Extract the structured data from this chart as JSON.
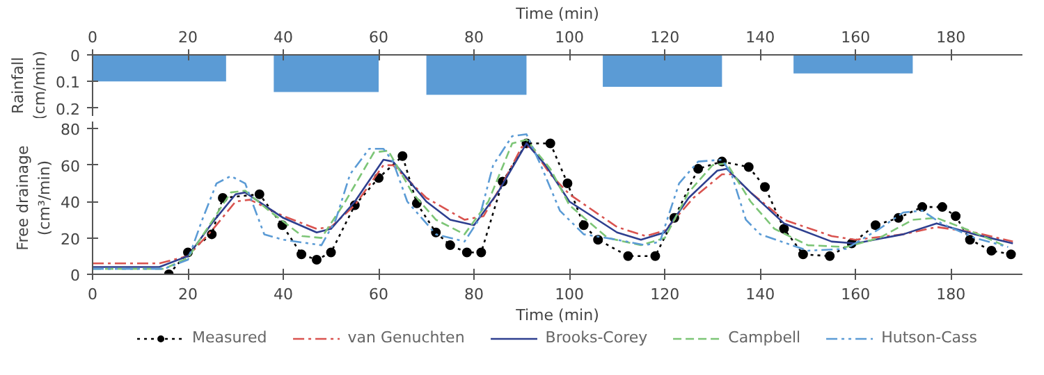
{
  "chart_data": [
    {
      "type": "area",
      "xlabel": "Time (min)",
      "ylabel": "Rainfall\n(cm/min)",
      "xlim": [
        0,
        195
      ],
      "xticks": [
        0,
        20,
        40,
        60,
        80,
        100,
        120,
        140,
        160,
        180
      ],
      "ylim": [
        0.23,
        0
      ],
      "yticks": [
        0,
        0.1,
        0.2
      ],
      "grid": false,
      "series": [
        {
          "color": "#5b9bd5",
          "x": [
            0,
            0,
            28,
            28,
            38,
            38,
            60,
            60,
            70,
            70,
            91,
            91,
            107,
            107,
            132,
            132,
            147,
            147,
            172,
            172
          ],
          "values": [
            0,
            0.1,
            0.1,
            0,
            0,
            0.14,
            0.14,
            0,
            0,
            0.15,
            0.15,
            0,
            0,
            0.12,
            0.12,
            0,
            0,
            0.07,
            0.07,
            0
          ]
        }
      ]
    },
    {
      "type": "line",
      "xlabel": "Time (min)",
      "ylabel": "Free drainage\n(cm³/min)",
      "xlim": [
        0,
        195
      ],
      "xticks": [
        0,
        20,
        40,
        60,
        80,
        100,
        120,
        140,
        160,
        180
      ],
      "ylim": [
        0,
        84
      ],
      "yticks": [
        0,
        20,
        40,
        60,
        80
      ],
      "grid": false,
      "legend": "bottom",
      "series": [
        {
          "name": "Measured",
          "color": "#000000",
          "marker": "circle",
          "line_style": "dotted",
          "x": [
            16,
            20,
            25,
            27.3,
            35,
            39.8,
            43.8,
            47,
            50,
            55,
            60,
            65,
            68,
            72,
            75,
            78.5,
            81.5,
            86,
            91,
            96,
            99.6,
            103,
            106,
            112.3,
            118,
            122,
            127,
            132,
            137.6,
            141,
            145,
            149,
            154.6,
            159.2,
            164.2,
            169,
            174,
            178.2,
            181,
            184,
            188.5,
            192.6
          ],
          "values": [
            0,
            12,
            22,
            42,
            44,
            27,
            11,
            8,
            12,
            38,
            53,
            65,
            39,
            23,
            16,
            12,
            12,
            51,
            72,
            72,
            50,
            27,
            19,
            10,
            10,
            31,
            58,
            62,
            59,
            48,
            25,
            11,
            10,
            17,
            27,
            31,
            37,
            37,
            32,
            19,
            13,
            11
          ]
        },
        {
          "name": "van Genuchten",
          "color": "#d9534f",
          "line_style": "dashdot",
          "x": [
            0,
            14,
            20,
            25,
            30,
            33,
            40,
            47,
            50,
            55,
            61,
            63,
            70,
            78,
            82,
            86,
            90,
            92,
            96,
            100,
            110,
            116,
            120,
            126,
            132,
            134,
            138,
            145,
            155,
            160,
            170,
            177,
            185,
            193
          ],
          "values": [
            6,
            6,
            10,
            24,
            40,
            41,
            32,
            25,
            26,
            38,
            60,
            60,
            42,
            30,
            32,
            50,
            70,
            70,
            55,
            44,
            26,
            21,
            24,
            42,
            55,
            55,
            45,
            30,
            21,
            19,
            22,
            26,
            23,
            18
          ]
        },
        {
          "name": "Brooks-Corey",
          "color": "#2e3f8f",
          "line_style": "solid",
          "x": [
            0,
            14,
            20,
            25,
            30,
            32,
            40,
            47,
            50,
            55,
            61,
            63,
            70,
            75,
            80,
            85,
            91,
            95,
            100,
            110,
            115,
            120,
            125,
            131,
            133,
            138,
            145,
            155,
            160,
            170,
            177,
            185,
            193
          ],
          "values": [
            4,
            4,
            10,
            28,
            44,
            45,
            31,
            23,
            25,
            40,
            63,
            62,
            40,
            30,
            27,
            45,
            72,
            60,
            40,
            23,
            19,
            23,
            42,
            57,
            58,
            45,
            28,
            18,
            17,
            22,
            28,
            22,
            17
          ]
        },
        {
          "name": "Campbell",
          "color": "#7cc576",
          "line_style": "dashed",
          "x": [
            0,
            15,
            20,
            24,
            29,
            32,
            37,
            44,
            48,
            53,
            59,
            62,
            67,
            72,
            78,
            83,
            88,
            91,
            96,
            100,
            108,
            115,
            120,
            125,
            130,
            133,
            138,
            143,
            150,
            158,
            165,
            172,
            177,
            184,
            191
          ],
          "values": [
            3,
            3,
            9,
            25,
            45,
            46,
            35,
            21,
            20,
            40,
            67,
            68,
            45,
            30,
            22,
            40,
            72,
            74,
            58,
            38,
            20,
            16,
            20,
            45,
            60,
            61,
            40,
            25,
            16,
            15,
            20,
            30,
            31,
            24,
            16
          ]
        },
        {
          "name": "Hutson-Cass",
          "color": "#5b9bd5",
          "line_style": "dashdotdot",
          "x": [
            0,
            15,
            20,
            23,
            26,
            29,
            32,
            36,
            40,
            48,
            51,
            54,
            58,
            61,
            63,
            66,
            72,
            78,
            81,
            84,
            88,
            91,
            94,
            98,
            103,
            110,
            116,
            119,
            123,
            127,
            132,
            134,
            137,
            140,
            150,
            158,
            165,
            170,
            174,
            178,
            185,
            192
          ],
          "values": [
            3,
            3,
            8,
            30,
            50,
            54,
            50,
            22,
            19,
            16,
            30,
            55,
            69,
            69,
            62,
            40,
            22,
            18,
            30,
            60,
            76,
            77,
            60,
            35,
            22,
            19,
            16,
            18,
            50,
            62,
            63,
            55,
            30,
            22,
            13,
            14,
            25,
            34,
            35,
            28,
            20,
            15
          ]
        }
      ]
    }
  ]
}
